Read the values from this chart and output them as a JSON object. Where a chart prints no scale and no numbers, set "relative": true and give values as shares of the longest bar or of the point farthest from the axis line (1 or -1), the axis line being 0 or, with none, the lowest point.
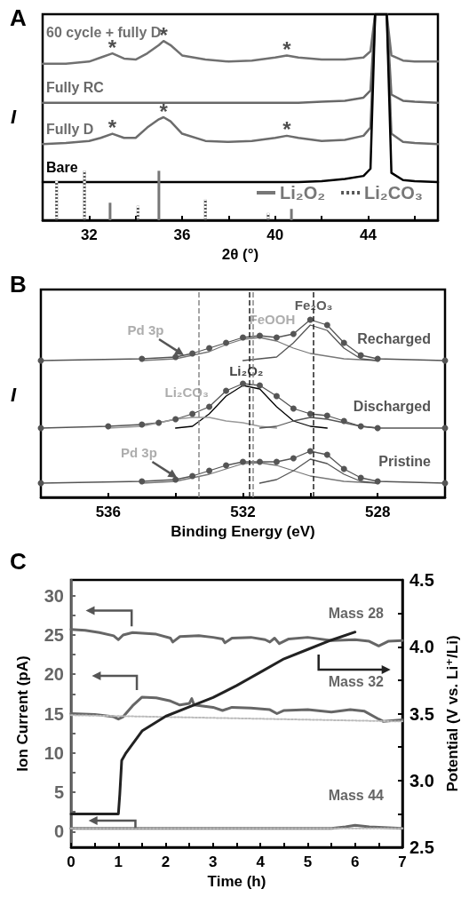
{
  "chart_data": [
    {
      "type": "line",
      "title": "A",
      "xlabel": "2θ (°)",
      "ylabel": "I",
      "relative": true,
      "xlim": [
        30,
        47
      ],
      "xticks": [
        32,
        {
          "value": 34,
          "label": null
        },
        36,
        {
          "value": 38,
          "label": null
        },
        40,
        {
          "value": 42,
          "label": null
        },
        44,
        {
          "value": 46,
          "label": null
        }
      ],
      "grid": false,
      "legend": "bottom right",
      "line_style": "solid",
      "marker": "none",
      "series": [
        {
          "name": "60 cycle + fully D",
          "color": "#707070",
          "x": [
            30,
            31,
            32,
            32.5,
            33,
            33.5,
            34,
            34.5,
            35,
            35.2,
            35.5,
            36,
            37,
            38,
            39,
            40,
            40.5,
            41,
            42,
            43,
            43.8,
            44.1,
            44.3,
            44.8,
            45,
            45.5,
            46,
            47
          ],
          "values": [
            0.76,
            0.76,
            0.77,
            0.79,
            0.81,
            0.785,
            0.78,
            0.81,
            0.85,
            0.87,
            0.85,
            0.8,
            0.78,
            0.77,
            0.775,
            0.79,
            0.8,
            0.79,
            0.78,
            0.78,
            0.79,
            0.82,
            1,
            1,
            0.8,
            0.775,
            0.77,
            0.77
          ]
        },
        {
          "name": "Fully RC",
          "color": "#686868",
          "x": [
            30,
            31,
            32,
            32.5,
            33,
            33.5,
            34,
            34.5,
            35,
            35.2,
            35.5,
            36,
            37,
            38,
            39,
            40,
            40.5,
            41,
            42,
            43,
            43.8,
            44.1,
            44.3,
            44.8,
            45,
            45.5,
            46,
            47
          ],
          "values": [
            0.57,
            0.57,
            0.57,
            0.57,
            0.57,
            0.57,
            0.57,
            0.57,
            0.57,
            0.57,
            0.57,
            0.57,
            0.57,
            0.57,
            0.57,
            0.57,
            0.57,
            0.57,
            0.575,
            0.58,
            0.595,
            0.63,
            1,
            1,
            0.61,
            0.58,
            0.575,
            0.57
          ]
        },
        {
          "name": "Fully D",
          "color": "#6c6c6c",
          "x": [
            30,
            31,
            32,
            32.5,
            33,
            33.5,
            34,
            34.5,
            35,
            35.2,
            35.5,
            36,
            37,
            38,
            39,
            40,
            40.5,
            41,
            42,
            43,
            43.8,
            44.1,
            44.3,
            44.8,
            45,
            45.5,
            46,
            47
          ],
          "values": [
            0.37,
            0.375,
            0.385,
            0.4,
            0.42,
            0.4,
            0.4,
            0.45,
            0.49,
            0.5,
            0.48,
            0.42,
            0.385,
            0.38,
            0.385,
            0.4,
            0.41,
            0.4,
            0.385,
            0.39,
            0.41,
            0.45,
            1,
            1,
            0.42,
            0.38,
            0.375,
            0.37
          ]
        },
        {
          "name": "Bare",
          "color": "#000000",
          "x": [
            30,
            31,
            32,
            32.5,
            33,
            33.5,
            34,
            34.5,
            35,
            35.2,
            35.5,
            36,
            37,
            38,
            39,
            40,
            40.5,
            41,
            42,
            43,
            43.8,
            44.1,
            44.3,
            44.8,
            45,
            45.5,
            46,
            47
          ],
          "values": [
            0.185,
            0.185,
            0.185,
            0.185,
            0.185,
            0.185,
            0.185,
            0.185,
            0.185,
            0.185,
            0.185,
            0.185,
            0.185,
            0.185,
            0.185,
            0.185,
            0.185,
            0.185,
            0.19,
            0.2,
            0.215,
            0.25,
            1,
            1,
            0.23,
            0.195,
            0.19,
            0.185
          ]
        },
        {
          "type": "bar",
          "name": "Li₂O₂",
          "color": "#777777",
          "line_style": "solid",
          "x": [
            32.9,
            35,
            40.7
          ],
          "values": [
            0.085,
            0.24,
            0.055
          ]
        },
        {
          "type": "bar",
          "name": "Li₂CO₃",
          "color": "#555555",
          "line_style": "dotted",
          "x": [
            30.6,
            31.8,
            34.1,
            37,
            39.7
          ],
          "values": [
            0.19,
            0.24,
            0.07,
            0.1,
            0.035
          ]
        }
      ],
      "annotations": [
        {
          "text": "*",
          "x": 33,
          "y": 0.81
        },
        {
          "text": "*",
          "x": 35.2,
          "y": 0.87
        },
        {
          "text": "*",
          "x": 40.5,
          "y": 0.8
        },
        {
          "text": "*",
          "x": 33,
          "y": 0.42
        },
        {
          "text": "*",
          "x": 35.2,
          "y": 0.5
        },
        {
          "text": "*",
          "x": 40.5,
          "y": 0.41
        }
      ]
    },
    {
      "type": "line",
      "title": "B",
      "xlabel": "Binding Energy (eV)",
      "ylabel": "I",
      "relative": true,
      "xlim": [
        538,
        526
      ],
      "xticks": [
        536,
        {
          "value": 534,
          "label": null
        },
        532,
        {
          "value": 530,
          "label": null
        },
        528
      ],
      "grid": false,
      "legend": false,
      "marker": "circle",
      "line_style": "solid",
      "ref_lines": [
        {
          "axis": "x",
          "value": 531.8,
          "color": "#222222",
          "line_style": "dashed"
        },
        {
          "axis": "x",
          "value": 531.7,
          "color": "#888888",
          "line_style": "dashed"
        },
        {
          "axis": "x",
          "value": 529.9,
          "color": "#222222",
          "line_style": "dashed"
        },
        {
          "axis": "x",
          "value": 533.3,
          "color": "#888888",
          "line_style": "dashed"
        }
      ],
      "series": [
        {
          "name": "Recharged",
          "color": "#555555",
          "x": [
            538,
            535,
            534,
            533.5,
            533,
            532.5,
            532,
            531.5,
            531,
            530.5,
            530,
            529.5,
            529,
            528.5,
            528,
            526
          ],
          "values": [
            0.77,
            0.78,
            0.79,
            0.81,
            0.84,
            0.87,
            0.9,
            0.91,
            0.9,
            0.92,
            1,
            0.97,
            0.87,
            0.8,
            0.78,
            0.77
          ]
        },
        {
          "color": "#777777",
          "marker": "none",
          "x": [
            535,
            534,
            533,
            532.5,
            532,
            531.5,
            531,
            530.5,
            530,
            529,
            528
          ],
          "values": [
            0.77,
            0.78,
            0.82,
            0.86,
            0.89,
            0.9,
            0.88,
            0.84,
            0.81,
            0.78,
            0.77
          ]
        },
        {
          "color": "#555555",
          "marker": "none",
          "x": [
            532,
            531,
            530.5,
            530,
            529.5,
            529,
            528.5,
            528
          ],
          "values": [
            0.77,
            0.79,
            0.87,
            0.97,
            0.94,
            0.84,
            0.78,
            0.77
          ]
        },
        {
          "name": "Discharged",
          "color": "#555555",
          "x": [
            538,
            536,
            535,
            534.5,
            534,
            533.5,
            533,
            532.5,
            532,
            531.5,
            531,
            530.5,
            530,
            529.5,
            529,
            528.5,
            528,
            526
          ],
          "values": [
            0.39,
            0.4,
            0.41,
            0.42,
            0.44,
            0.47,
            0.51,
            0.6,
            0.64,
            0.63,
            0.57,
            0.5,
            0.47,
            0.46,
            0.43,
            0.4,
            0.39,
            0.39
          ]
        },
        {
          "color": "#000000",
          "marker": "none",
          "x": [
            534,
            533.5,
            533,
            532.5,
            532,
            531.5,
            531,
            530.5,
            530,
            529.5
          ],
          "values": [
            0.39,
            0.4,
            0.47,
            0.57,
            0.63,
            0.61,
            0.51,
            0.43,
            0.4,
            0.39
          ]
        },
        {
          "color": "#999999",
          "marker": "none",
          "x": [
            536,
            535,
            534.5,
            534,
            533.5,
            533,
            532.5,
            532,
            531.5,
            531
          ],
          "values": [
            0.39,
            0.4,
            0.42,
            0.44,
            0.45,
            0.45,
            0.43,
            0.42,
            0.4,
            0.39
          ]
        },
        {
          "color": "#555555",
          "marker": "none",
          "x": [
            531.5,
            531,
            530.5,
            530,
            529.5,
            529,
            528.5,
            528
          ],
          "values": [
            0.39,
            0.4,
            0.43,
            0.45,
            0.44,
            0.42,
            0.4,
            0.39
          ]
        },
        {
          "name": "Pristine",
          "color": "#555555",
          "x": [
            538,
            535,
            534,
            533.5,
            533,
            532.5,
            532,
            531.5,
            531,
            530.5,
            530,
            529.5,
            529,
            528.5,
            528,
            526
          ],
          "values": [
            0.08,
            0.09,
            0.1,
            0.12,
            0.15,
            0.18,
            0.2,
            0.2,
            0.2,
            0.22,
            0.26,
            0.24,
            0.16,
            0.11,
            0.09,
            0.08
          ]
        },
        {
          "color": "#777777",
          "marker": "none",
          "x": [
            535,
            534,
            533,
            532.5,
            532,
            531.5,
            531,
            530.5,
            530,
            529,
            528
          ],
          "values": [
            0.08,
            0.09,
            0.13,
            0.16,
            0.19,
            0.195,
            0.18,
            0.15,
            0.12,
            0.09,
            0.08
          ]
        },
        {
          "color": "#555555",
          "marker": "none",
          "x": [
            531.5,
            531,
            530.5,
            530,
            529.5,
            529,
            528.5,
            528
          ],
          "values": [
            0.08,
            0.1,
            0.15,
            0.215,
            0.19,
            0.13,
            0.09,
            0.08
          ]
        }
      ],
      "annotations": [
        {
          "text": "Fe₂O₃",
          "x": 529.9,
          "y": 1
        },
        {
          "text": "FeOOH",
          "x": 531.5,
          "y": 0.9
        },
        {
          "text": "Pd 3p",
          "x": 533.7,
          "y": 0.79
        },
        {
          "text": "Li₂O₂",
          "x": 531.9,
          "y": 0.64
        },
        {
          "text": "Li₂CO₃",
          "x": 533.3,
          "y": 0.45
        },
        {
          "text": "Pd 3p",
          "x": 533.9,
          "y": 0.1
        }
      ]
    },
    {
      "type": "line",
      "title": "C",
      "xlabel": "Time (h)",
      "ylabel": "Ion Current (pA)",
      "y2label": "Potential (V vs. Li⁺/Li)",
      "xlim": [
        0,
        7
      ],
      "xticks": [
        0,
        {
          "value": 0.5,
          "label": null
        },
        1,
        {
          "value": 1.5,
          "label": null
        },
        2,
        {
          "value": 2.5,
          "label": null
        },
        3,
        {
          "value": 3.5,
          "label": null
        },
        4,
        {
          "value": 4.5,
          "label": null
        },
        5,
        {
          "value": 5.5,
          "label": null
        },
        6,
        {
          "value": 6.5,
          "label": null
        },
        7
      ],
      "ylim": [
        -2,
        32
      ],
      "yticks": [
        0,
        {
          "value": 2.5,
          "label": null
        },
        5,
        {
          "value": 7.5,
          "label": null
        },
        10,
        {
          "value": 12.5,
          "label": null
        },
        15,
        {
          "value": 17.5,
          "label": null
        },
        20,
        {
          "value": 22.5,
          "label": null
        },
        25,
        {
          "value": 27.5,
          "label": null
        },
        30
      ],
      "y2lim": [
        2.5,
        4.5
      ],
      "y2ticks": [
        2.5,
        {
          "value": 2.75,
          "label": null
        },
        {
          "value": 3,
          "label": "3.0"
        },
        {
          "value": 3.25,
          "label": null
        },
        3.5,
        {
          "value": 3.75,
          "label": null
        },
        {
          "value": 4,
          "label": "4.0"
        },
        {
          "value": 4.25,
          "label": null
        },
        4.5
      ],
      "grid": false,
      "legend": false,
      "marker": "none",
      "line_style": "solid",
      "series": [
        {
          "name": "Mass 28",
          "color": "#666666",
          "x": [
            0,
            0.3,
            0.6,
            0.9,
            1.0,
            1.1,
            1.3,
            1.8,
            2.1,
            2.15,
            2.3,
            2.7,
            3.0,
            3.2,
            3.25,
            3.4,
            3.8,
            4.1,
            4.2,
            4.3,
            4.4,
            4.6,
            5.0,
            5.5,
            6.0,
            6.3,
            6.5,
            6.7,
            7.0
          ],
          "values": [
            25.7,
            25.6,
            25.3,
            24.9,
            24.4,
            25.0,
            25.3,
            25.1,
            24.6,
            24.1,
            24.8,
            24.9,
            24.7,
            24.5,
            24.0,
            24.6,
            24.7,
            24.4,
            24.1,
            24.6,
            23.9,
            24.5,
            24.7,
            24.3,
            24.4,
            24.2,
            23.6,
            24.2,
            24.3
          ]
        },
        {
          "name": "Mass 32",
          "color": "#666666",
          "x": [
            0,
            0.5,
            0.9,
            1.0,
            1.1,
            1.3,
            1.5,
            1.8,
            2.1,
            2.3,
            2.5,
            2.55,
            2.6,
            3.0,
            3.2,
            3.4,
            3.8,
            4.2,
            4.35,
            4.5,
            5.0,
            5.5,
            5.9,
            6.2,
            6.5,
            6.6,
            7.0
          ],
          "values": [
            15.0,
            14.9,
            14.6,
            14.3,
            14.6,
            16.0,
            17.1,
            17.0,
            16.6,
            16.1,
            16.3,
            16.9,
            16.1,
            15.8,
            15.4,
            15.8,
            15.7,
            15.5,
            15.0,
            15.4,
            15.5,
            15.2,
            15.5,
            15.3,
            14.3,
            14.0,
            14.2
          ]
        },
        {
          "color": "#bbbbbb",
          "line_style": "dotted",
          "x": [
            0,
            7
          ],
          "values": [
            14.8,
            14.0
          ]
        },
        {
          "name": "Mass 44",
          "color": "#666666",
          "x": [
            0,
            5.5,
            5.8,
            6.0,
            6.3,
            7
          ],
          "values": [
            0.4,
            0.4,
            0.6,
            0.8,
            0.6,
            0.4
          ]
        },
        {
          "color": "#bbbbbb",
          "line_style": "dotted",
          "x": [
            0,
            7
          ],
          "values": [
            0.4,
            0.4
          ]
        },
        {
          "color": "#222222",
          "axis": "y2",
          "x": [
            0,
            1.0,
            1.03,
            1.07,
            1.15,
            1.5,
            2,
            2.5,
            3,
            3.5,
            4,
            4.5,
            5,
            5.5,
            6
          ],
          "values": [
            2.75,
            2.75,
            2.9,
            3.15,
            3.2,
            3.37,
            3.48,
            3.55,
            3.62,
            3.71,
            3.81,
            3.91,
            3.98,
            4.05,
            4.11
          ]
        }
      ]
    }
  ]
}
